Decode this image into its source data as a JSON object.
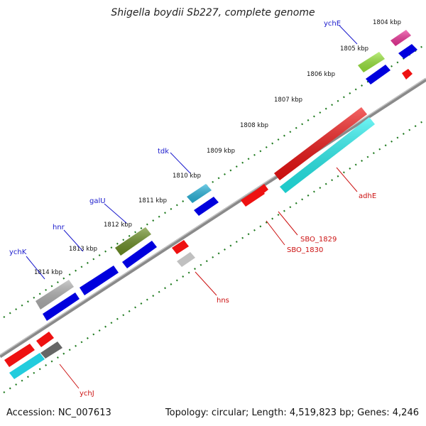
{
  "title": "Shigella boydii Sb227, complete genome",
  "footer": {
    "accession": "Accession: NC_007613",
    "summary": "Topology: circular; Length: 4,519,823 bp; Genes: 4,246"
  },
  "colors": {
    "backbone": "#7a7a7a",
    "tick_dots": "#1f7a1f",
    "label_forward": "#1a1acc",
    "label_reverse": "#cc1111"
  },
  "kbp_labels": [
    "1804 kbp",
    "1805 kbp",
    "1806 kbp",
    "1807 kbp",
    "1808 kbp",
    "1809 kbp",
    "1810 kbp",
    "1811 kbp",
    "1812 kbp",
    "1813 kbp",
    "1814 kbp"
  ],
  "genes": [
    {
      "name": "ychE",
      "strand": "forward",
      "color": "#99e63a"
    },
    {
      "name": "tdk",
      "strand": "forward",
      "color": "#27b4dc"
    },
    {
      "name": "galU",
      "strand": "forward",
      "color": "#6b8e23"
    },
    {
      "name": "hnr",
      "strand": "forward",
      "color": "#0000dd"
    },
    {
      "name": "ychK",
      "strand": "forward",
      "color": "#b0b0b0"
    },
    {
      "name": "adhE",
      "strand": "reverse",
      "color": "#ee1111"
    },
    {
      "name": "SBO_1829",
      "strand": "reverse",
      "color": "#ee1111"
    },
    {
      "name": "SBO_1830",
      "strand": "reverse",
      "color": "#ee1111"
    },
    {
      "name": "hns",
      "strand": "reverse",
      "color": "#ee1111"
    },
    {
      "name": "ychJ",
      "strand": "reverse",
      "color": "#ee1111"
    }
  ]
}
